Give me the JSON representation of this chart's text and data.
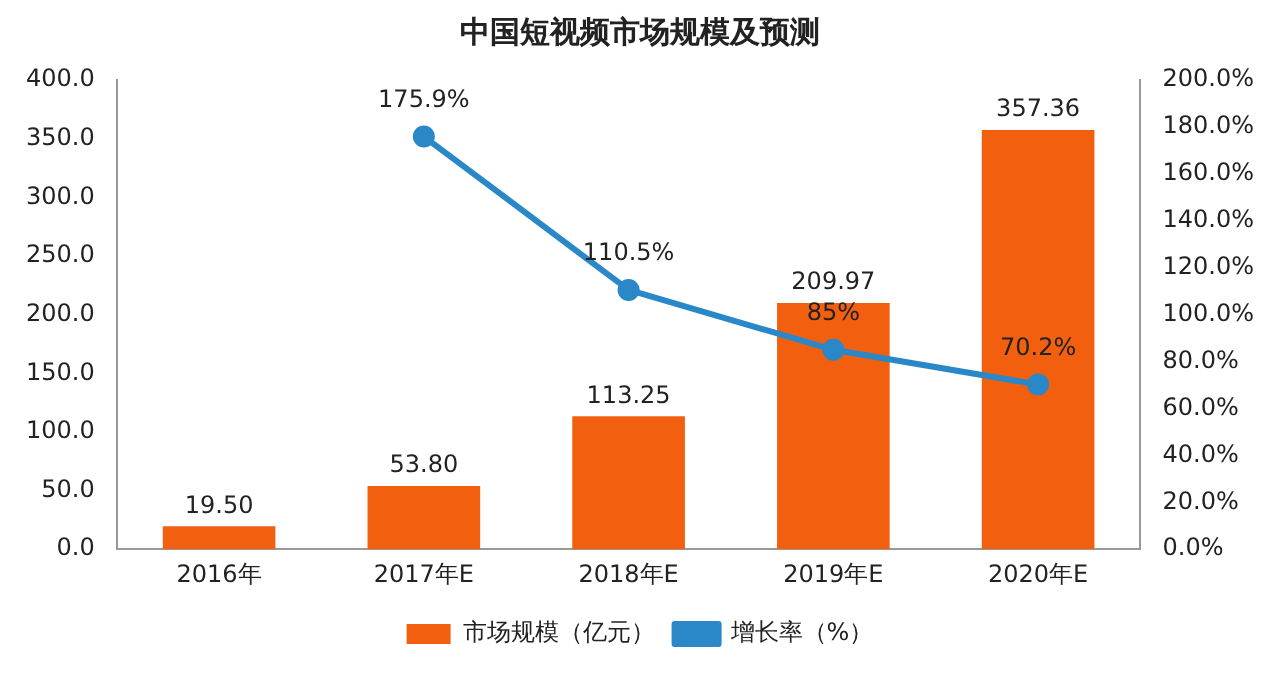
{
  "chart_data": {
    "type": "bar",
    "title": "中国短视频市场规模及预测",
    "categories": [
      "2016年",
      "2017年E",
      "2018年E",
      "2019年E",
      "2020年E"
    ],
    "series": [
      {
        "name": "市场规模（亿元）",
        "color": "#f2600f",
        "values": [
          19.5,
          53.8,
          113.25,
          209.97,
          357.36
        ],
        "value_labels": [
          "19.50",
          "53.80",
          "113.25",
          "209.97",
          "357.36"
        ]
      },
      {
        "name": "增长率（%）",
        "type": "line",
        "axis": "y2",
        "color": "#2a87c8",
        "marker": "circle",
        "values": [
          null,
          175.9,
          110.5,
          85,
          70.2
        ],
        "value_labels": [
          null,
          "175.9%",
          "110.5%",
          "85%",
          "70.2%"
        ]
      }
    ],
    "ylim": [
      0,
      400
    ],
    "yticks": [
      {
        "value": 0,
        "label": "0.0"
      },
      {
        "value": 50,
        "label": "50.0"
      },
      {
        "value": 100,
        "label": "100.0"
      },
      {
        "value": 150,
        "label": "150.0"
      },
      {
        "value": 200,
        "label": "200.0"
      },
      {
        "value": 250,
        "label": "250.0"
      },
      {
        "value": 300,
        "label": "300.0"
      },
      {
        "value": 350,
        "label": "350.0"
      },
      {
        "value": 400,
        "label": "400.0"
      }
    ],
    "y2lim": [
      0,
      200
    ],
    "y2ticks": [
      {
        "value": 0,
        "label": "0.0%"
      },
      {
        "value": 20,
        "label": "20.0%"
      },
      {
        "value": 40,
        "label": "40.0%"
      },
      {
        "value": 60,
        "label": "60.0%"
      },
      {
        "value": 80,
        "label": "80.0%"
      },
      {
        "value": 100,
        "label": "100.0%"
      },
      {
        "value": 120,
        "label": "120.0%"
      },
      {
        "value": 140,
        "label": "140.0%"
      },
      {
        "value": 160,
        "label": "160.0%"
      },
      {
        "value": 180,
        "label": "180.0%"
      },
      {
        "value": 200,
        "label": "200.0%"
      }
    ],
    "grid": false,
    "legend": "bottom"
  }
}
